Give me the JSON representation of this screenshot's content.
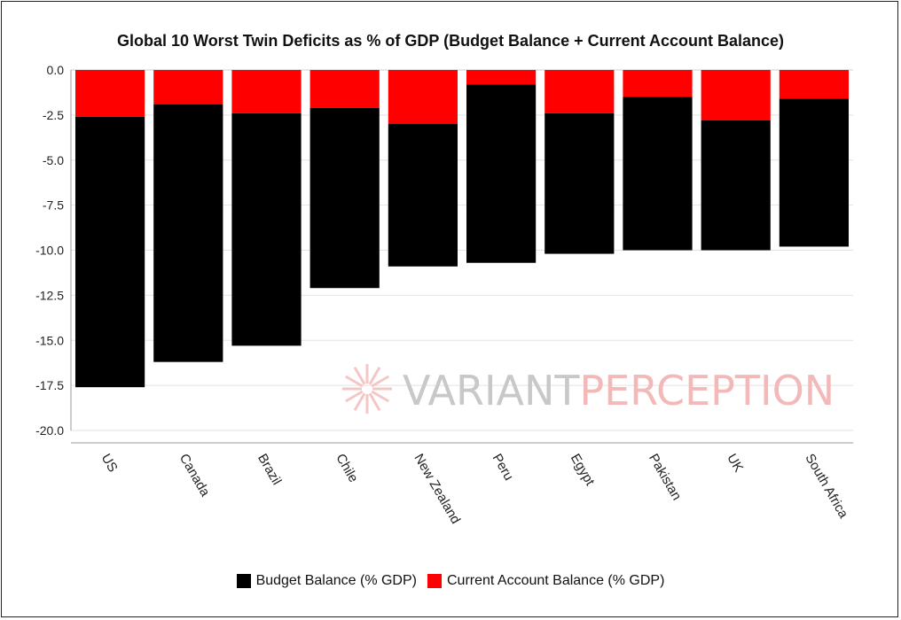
{
  "chart_data": {
    "type": "bar",
    "stacked": true,
    "title": "Global 10 Worst Twin Deficits as % of GDP (Budget Balance + Current Account Balance)",
    "xlabel": "",
    "ylabel": "",
    "categories": [
      "US",
      "Canada",
      "Brazil",
      "Chile",
      "New Zealand",
      "Peru",
      "Egypt",
      "Pakistan",
      "UK",
      "South Africa"
    ],
    "series": [
      {
        "name": "Current Account Balance (% GDP)",
        "color": "#ff0000",
        "values": [
          -2.6,
          -1.9,
          -2.4,
          -2.1,
          -3.0,
          -0.8,
          -2.4,
          -1.5,
          -2.8,
          -1.6
        ]
      },
      {
        "name": "Budget Balance (% GDP)",
        "color": "#000000",
        "values": [
          -15.0,
          -14.3,
          -12.9,
          -10.0,
          -7.9,
          -9.9,
          -7.8,
          -8.5,
          -7.2,
          -8.2
        ]
      }
    ],
    "ylim": [
      -20.0,
      0.0
    ],
    "yticks": [
      "0.0",
      "-2.5",
      "-5.0",
      "-7.5",
      "-10.0",
      "-12.5",
      "-15.0",
      "-17.5",
      "-20.0"
    ],
    "grid": true,
    "legend_position": "bottom"
  },
  "watermark": {
    "part1": "VARIANT",
    "part2": "PERCEPTION",
    "color1": "#c8c8c8",
    "color2": "#f3b8b8"
  }
}
